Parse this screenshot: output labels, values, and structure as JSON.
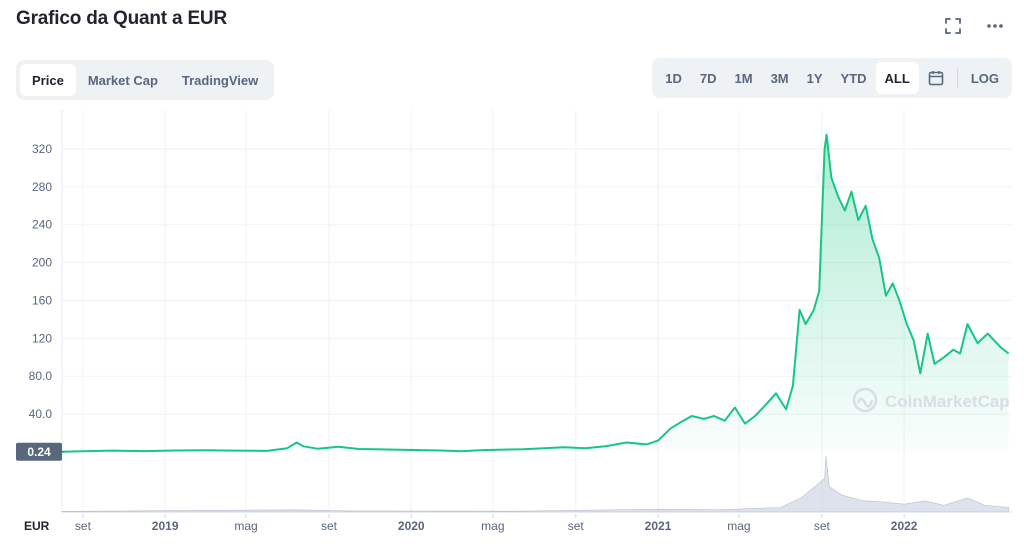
{
  "title": "Grafico da Quant a EUR",
  "top_icons": [
    "fullscreen-icon",
    "more-icon"
  ],
  "tabs": [
    {
      "label": "Price",
      "active": true
    },
    {
      "label": "Market Cap",
      "active": false
    },
    {
      "label": "TradingView",
      "active": false
    }
  ],
  "ranges": {
    "items": [
      {
        "label": "1D",
        "active": false
      },
      {
        "label": "7D",
        "active": false
      },
      {
        "label": "1M",
        "active": false
      },
      {
        "label": "3M",
        "active": false
      },
      {
        "label": "1Y",
        "active": false
      },
      {
        "label": "YTD",
        "active": false
      },
      {
        "label": "ALL",
        "active": true
      }
    ],
    "calendar_icon": "calendar-icon",
    "log_label": "LOG"
  },
  "colors": {
    "line": "#16c784",
    "grid": "#eff2f5",
    "axis_text": "#58667e",
    "price_tag_bg": "#58667e"
  },
  "watermark": "CoinMarketCap",
  "chart_data": {
    "type": "line",
    "currency_label": "EUR",
    "ylim": [
      0,
      340
    ],
    "yticks": [
      40,
      80,
      120,
      160,
      200,
      240,
      280,
      320
    ],
    "ytick_labels": [
      "40.0",
      "80.0",
      "120",
      "160",
      "200",
      "240",
      "280",
      "320"
    ],
    "start_price_label": "0.24",
    "start_price": 0.24,
    "xlim": [
      "2018-08-01",
      "2022-06-10"
    ],
    "xticks": [
      {
        "date": "2018-09-01",
        "label": "set"
      },
      {
        "date": "2019-01-01",
        "label": "2019",
        "bold": true
      },
      {
        "date": "2019-05-01",
        "label": "mag"
      },
      {
        "date": "2019-09-01",
        "label": "set"
      },
      {
        "date": "2020-01-01",
        "label": "2020",
        "bold": true
      },
      {
        "date": "2020-05-01",
        "label": "mag"
      },
      {
        "date": "2020-09-01",
        "label": "set"
      },
      {
        "date": "2021-01-01",
        "label": "2021",
        "bold": true
      },
      {
        "date": "2021-05-01",
        "label": "mag"
      },
      {
        "date": "2021-09-01",
        "label": "set"
      },
      {
        "date": "2022-01-01",
        "label": "2022",
        "bold": true
      }
    ],
    "series": [
      {
        "points": [
          [
            "2018-08-01",
            0.24
          ],
          [
            "2018-09-01",
            0.8
          ],
          [
            "2018-10-15",
            1.5
          ],
          [
            "2018-12-01",
            0.9
          ],
          [
            "2019-01-15",
            1.6
          ],
          [
            "2019-03-01",
            1.8
          ],
          [
            "2019-04-15",
            1.5
          ],
          [
            "2019-06-01",
            1.2
          ],
          [
            "2019-07-01",
            4.0
          ],
          [
            "2019-07-15",
            10.0
          ],
          [
            "2019-07-25",
            6.0
          ],
          [
            "2019-08-15",
            3.5
          ],
          [
            "2019-09-15",
            5.5
          ],
          [
            "2019-10-15",
            3.2
          ],
          [
            "2019-12-15",
            2.4
          ],
          [
            "2020-02-15",
            1.6
          ],
          [
            "2020-03-15",
            0.7
          ],
          [
            "2020-04-15",
            2.0
          ],
          [
            "2020-06-15",
            3.0
          ],
          [
            "2020-08-15",
            5.0
          ],
          [
            "2020-09-15",
            4.0
          ],
          [
            "2020-10-15",
            6.0
          ],
          [
            "2020-11-15",
            10.0
          ],
          [
            "2020-12-15",
            8.0
          ],
          [
            "2021-01-01",
            12.0
          ],
          [
            "2021-01-20",
            25.0
          ],
          [
            "2021-02-05",
            32.0
          ],
          [
            "2021-02-20",
            38.0
          ],
          [
            "2021-03-10",
            35.0
          ],
          [
            "2021-03-25",
            38.0
          ],
          [
            "2021-04-10",
            33.0
          ],
          [
            "2021-04-25",
            47.0
          ],
          [
            "2021-05-10",
            30.0
          ],
          [
            "2021-05-25",
            38.0
          ],
          [
            "2021-06-10",
            50.0
          ],
          [
            "2021-06-25",
            62.0
          ],
          [
            "2021-07-10",
            45.0
          ],
          [
            "2021-07-20",
            70.0
          ],
          [
            "2021-07-30",
            150.0
          ],
          [
            "2021-08-08",
            135.0
          ],
          [
            "2021-08-20",
            150.0
          ],
          [
            "2021-08-28",
            170.0
          ],
          [
            "2021-09-05",
            320.0
          ],
          [
            "2021-09-08",
            335.0
          ],
          [
            "2021-09-15",
            290.0
          ],
          [
            "2021-09-25",
            270.0
          ],
          [
            "2021-10-05",
            255.0
          ],
          [
            "2021-10-15",
            275.0
          ],
          [
            "2021-10-25",
            245.0
          ],
          [
            "2021-11-05",
            260.0
          ],
          [
            "2021-11-15",
            225.0
          ],
          [
            "2021-11-25",
            205.0
          ],
          [
            "2021-12-05",
            165.0
          ],
          [
            "2021-12-15",
            178.0
          ],
          [
            "2021-12-25",
            160.0
          ],
          [
            "2022-01-05",
            135.0
          ],
          [
            "2022-01-15",
            118.0
          ],
          [
            "2022-01-25",
            83.0
          ],
          [
            "2022-02-05",
            125.0
          ],
          [
            "2022-02-15",
            93.0
          ],
          [
            "2022-03-01",
            100.0
          ],
          [
            "2022-03-15",
            108.0
          ],
          [
            "2022-03-25",
            104.0
          ],
          [
            "2022-04-05",
            135.0
          ],
          [
            "2022-04-20",
            115.0
          ],
          [
            "2022-05-05",
            125.0
          ],
          [
            "2022-05-25",
            110.0
          ],
          [
            "2022-06-05",
            104.0
          ]
        ]
      }
    ],
    "volume": {
      "points": [
        [
          "2018-08-01",
          0.01
        ],
        [
          "2019-07-15",
          0.04
        ],
        [
          "2019-10-01",
          0.02
        ],
        [
          "2020-06-01",
          0.015
        ],
        [
          "2021-01-01",
          0.05
        ],
        [
          "2021-04-01",
          0.04
        ],
        [
          "2021-07-01",
          0.08
        ],
        [
          "2021-08-01",
          0.25
        ],
        [
          "2021-09-05",
          0.6
        ],
        [
          "2021-09-07",
          1.0
        ],
        [
          "2021-09-12",
          0.45
        ],
        [
          "2021-10-01",
          0.3
        ],
        [
          "2021-11-01",
          0.2
        ],
        [
          "2021-12-01",
          0.18
        ],
        [
          "2022-01-01",
          0.14
        ],
        [
          "2022-02-01",
          0.2
        ],
        [
          "2022-03-01",
          0.12
        ],
        [
          "2022-04-05",
          0.25
        ],
        [
          "2022-05-01",
          0.12
        ],
        [
          "2022-06-05",
          0.08
        ]
      ]
    }
  }
}
